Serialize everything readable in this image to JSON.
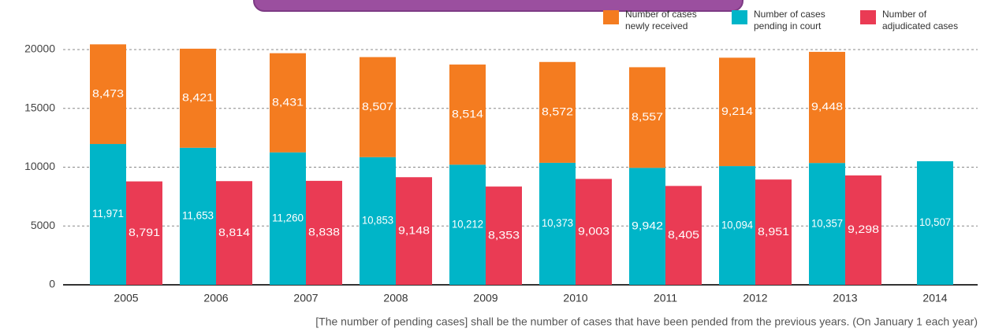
{
  "chart_data": {
    "type": "bar",
    "categories": [
      "2005",
      "2006",
      "2007",
      "2008",
      "2009",
      "2010",
      "2011",
      "2012",
      "2013",
      "2014"
    ],
    "series": [
      {
        "name": "Number of cases newly received",
        "color": "#f47c20",
        "stack": 0,
        "values": [
          8473,
          8421,
          8431,
          8507,
          8514,
          8572,
          8557,
          9214,
          9448,
          null
        ],
        "value_labels": [
          "8,473",
          "8,421",
          "8,431",
          "8,507",
          "8,514",
          "8,572",
          "8,557",
          "9,214",
          "9,448",
          null
        ]
      },
      {
        "name": "Number of cases pending in court",
        "color": "#00b5c8",
        "stack": 0,
        "values": [
          11971,
          11653,
          11260,
          10853,
          10212,
          10373,
          9942,
          10094,
          10357,
          10507
        ],
        "value_labels": [
          "11,971",
          "11,653",
          "11,260",
          "10,853",
          "10,212",
          "10,373",
          "9,942",
          "10,094",
          "10,357",
          "10,507"
        ]
      },
      {
        "name": "Number of adjudicated cases",
        "color": "#ea3b54",
        "stack": 1,
        "values": [
          8791,
          8814,
          8838,
          9148,
          8353,
          9003,
          8405,
          8951,
          9298,
          null
        ],
        "value_labels": [
          "8,791",
          "8,814",
          "8,838",
          "9,148",
          "8,353",
          "9,003",
          "8,405",
          "8,951",
          "9,298",
          null
        ]
      }
    ],
    "ylim": [
      0,
      20000
    ],
    "yticks": [
      0,
      5000,
      10000,
      15000,
      20000
    ],
    "grid": true,
    "note": "[The number of pending cases] shall be the number of cases that have been pended from the previous years. (On January 1 each year)"
  }
}
